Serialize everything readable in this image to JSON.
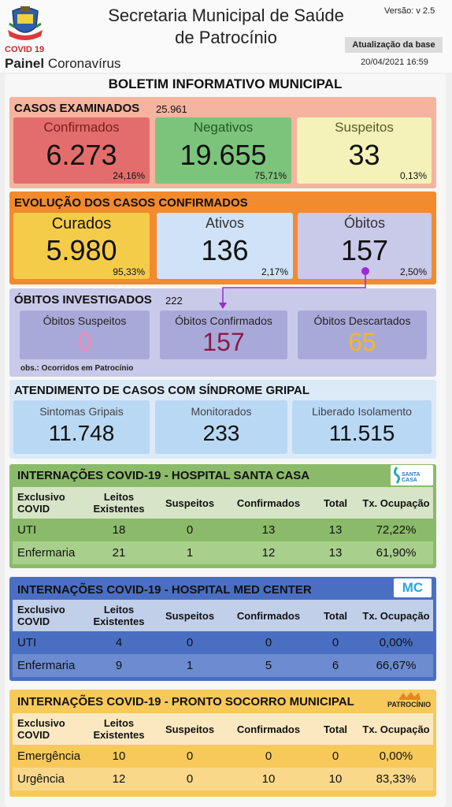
{
  "header": {
    "covid_tag": "COVID 19",
    "painel_bold": "Painel",
    "painel_rest": "Coronavírus",
    "title_line1": "Secretaria Municipal de Saúde",
    "title_line2": "de Patrocínio",
    "version": "Versão: v 2.5",
    "update_label": "Atualização da base",
    "update_date": "20/04/2021 16:59"
  },
  "board_title": "BOLETIM INFORMATIVO MUNICIPAL",
  "examinados": {
    "title": "CASOS EXAMINADOS",
    "total": "25.961",
    "cards": [
      {
        "label": "Confirmados",
        "value": "6.273",
        "pct": "24,16%"
      },
      {
        "label": "Negativos",
        "value": "19.655",
        "pct": "75,71%"
      },
      {
        "label": "Suspeitos",
        "value": "33",
        "pct": "0,13%"
      }
    ]
  },
  "evolucao": {
    "title": "EVOLUÇÃO DOS CASOS CONFIRMADOS",
    "cards": [
      {
        "label": "Curados",
        "value": "5.980",
        "pct": "95,33%"
      },
      {
        "label": "Ativos",
        "value": "136",
        "pct": "2,17%"
      },
      {
        "label": "Óbitos",
        "value": "157",
        "pct": "2,50%"
      }
    ]
  },
  "obitos": {
    "title": "ÓBITOS INVESTIGADOS",
    "total": "222",
    "note": "obs.: Ocorridos em Patrocínio",
    "cards": [
      {
        "label": "Óbitos Suspeitos",
        "value": "0"
      },
      {
        "label": "Óbitos Confirmados",
        "value": "157"
      },
      {
        "label": "Óbitos Descartados",
        "value": "65"
      }
    ]
  },
  "sindrome": {
    "title": "ATENDIMENTO DE CASOS COM SÍNDROME GRIPAL",
    "cards": [
      {
        "label": "Sintomas Gripais",
        "value": "11.748"
      },
      {
        "label": "Monitorados",
        "value": "233"
      },
      {
        "label": "Liberado Isolamento",
        "value": "11.515"
      }
    ]
  },
  "santa_casa": {
    "title": "INTERNAÇÕES COVID-19 - HOSPITAL SANTA CASA",
    "logo_text": "SANTA CASA",
    "headers": [
      "Exclusivo COVID",
      "Leitos Existentes",
      "Suspeitos",
      "Confirmados",
      "Total",
      "Tx. Ocupação"
    ],
    "rows": [
      [
        "UTI",
        "18",
        "0",
        "13",
        "13",
        "72,22%"
      ],
      [
        "Enfermaria",
        "21",
        "1",
        "12",
        "13",
        "61,90%"
      ]
    ]
  },
  "med_center": {
    "title": "INTERNAÇÕES COVID-19 - HOSPITAL MED CENTER",
    "logo_text": "MC",
    "headers": [
      "Exclusivo COVID",
      "Leitos Existentes",
      "Suspeitos",
      "Confirmados",
      "Total",
      "Tx. Ocupação"
    ],
    "rows": [
      [
        "UTI",
        "4",
        "0",
        "0",
        "0",
        "0,00%"
      ],
      [
        "Enfermaria",
        "9",
        "1",
        "5",
        "6",
        "66,67%"
      ]
    ]
  },
  "pronto_socorro": {
    "title": "INTERNAÇÕES COVID-19 - PRONTO SOCORRO MUNICIPAL",
    "logo_text": "PATROCÍNIO",
    "headers": [
      "Exclusivo COVID",
      "Leitos Existentes",
      "Suspeitos",
      "Confirmados",
      "Total",
      "Tx. Ocupação"
    ],
    "rows": [
      [
        "Emergência",
        "10",
        "0",
        "0",
        "0",
        "0,00%"
      ],
      [
        "Urgência",
        "12",
        "0",
        "10",
        "10",
        "83,33%"
      ]
    ]
  },
  "colors": {
    "red": "#e36d6d",
    "green": "#7cc47c",
    "yellow_light": "#f4f2b8",
    "orange": "#f28a2e",
    "gold": "#f5cc4a",
    "blue_light": "#cfe2f7",
    "lavender": "#c9c9ea",
    "purple": "#9a2bd0",
    "santa_green": "#8bbb6a",
    "med_blue": "#4a6fc2",
    "ps_yellow": "#f7c95a"
  }
}
